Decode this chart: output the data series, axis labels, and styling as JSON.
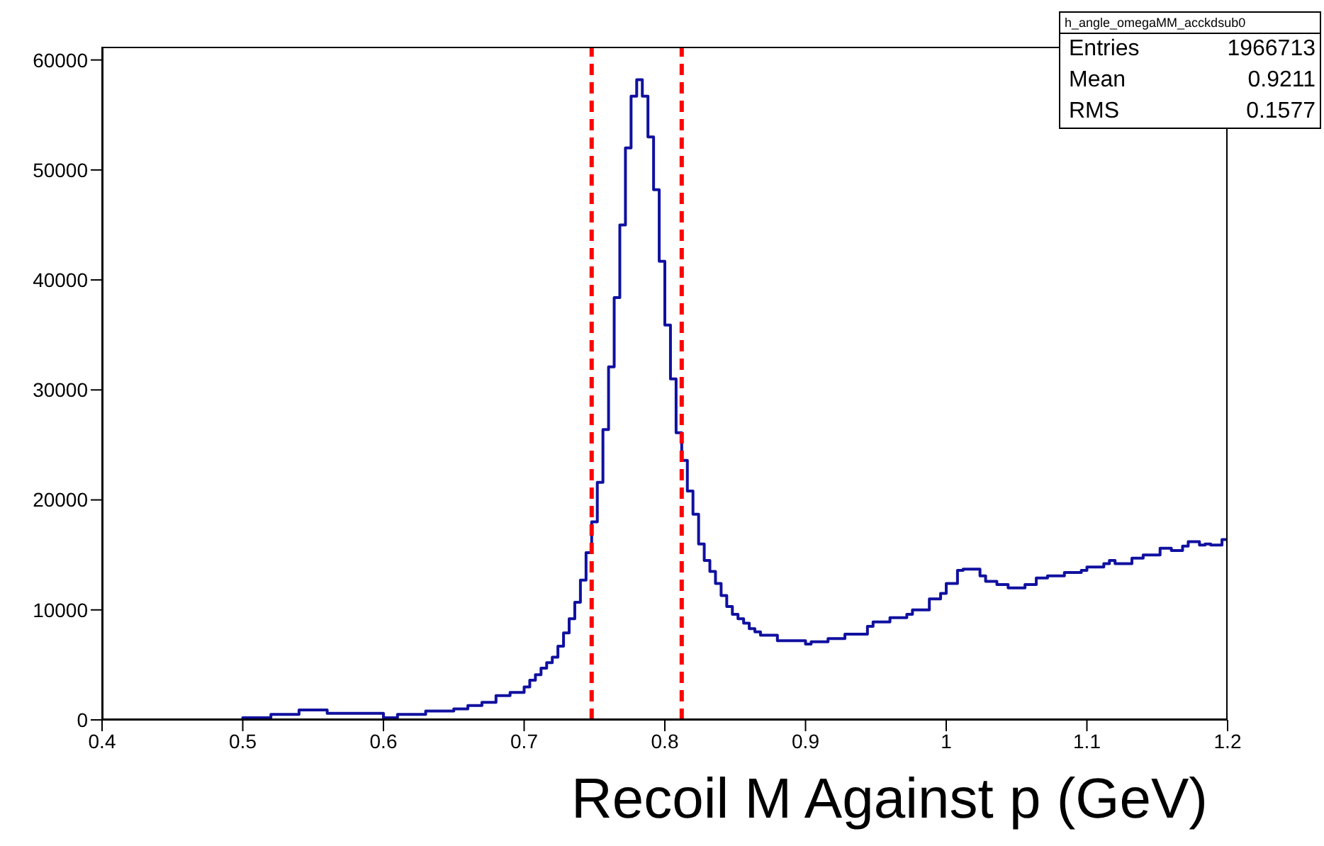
{
  "chart_data": {
    "type": "histogram",
    "xlabel": "Recoil M Against p (GeV)",
    "bins": [
      0.5,
      0.52,
      0.54,
      0.56,
      0.58,
      0.6,
      0.61,
      0.63,
      0.65,
      0.66,
      0.67,
      0.68,
      0.69,
      0.7,
      0.704,
      0.708,
      0.712,
      0.716,
      0.72,
      0.724,
      0.728,
      0.732,
      0.736,
      0.74,
      0.744,
      0.748,
      0.752,
      0.756,
      0.76,
      0.764,
      0.768,
      0.772,
      0.776,
      0.78,
      0.784,
      0.788,
      0.792,
      0.796,
      0.8,
      0.804,
      0.808,
      0.812,
      0.816,
      0.82,
      0.824,
      0.828,
      0.832,
      0.836,
      0.84,
      0.844,
      0.848,
      0.852,
      0.856,
      0.86,
      0.864,
      0.868,
      0.88,
      0.9,
      0.904,
      0.916,
      0.928,
      0.944,
      0.948,
      0.96,
      0.972,
      0.976,
      0.988,
      0.996,
      1.0,
      1.008,
      1.012,
      1.024,
      1.028,
      1.036,
      1.044,
      1.056,
      1.064,
      1.072,
      1.084,
      1.096,
      1.1,
      1.112,
      1.116,
      1.12,
      1.132,
      1.14,
      1.152,
      1.16,
      1.168,
      1.172,
      1.18,
      1.184,
      1.188,
      1.196,
      1.2
    ],
    "values": [
      200,
      500,
      900,
      600,
      600,
      200,
      500,
      800,
      1000,
      1300,
      1600,
      2200,
      2500,
      3000,
      3600,
      4100,
      4700,
      5200,
      5700,
      6700,
      7900,
      9200,
      10700,
      12700,
      15200,
      18000,
      21600,
      26400,
      32100,
      38400,
      45000,
      52000,
      56700,
      58200,
      56700,
      53000,
      48200,
      41700,
      35900,
      31000,
      26100,
      23600,
      20800,
      18700,
      16000,
      14500,
      13500,
      12400,
      11300,
      10300,
      9600,
      9200,
      8800,
      8300,
      8000,
      7700,
      7200,
      6900,
      7100,
      7400,
      7800,
      8500,
      8900,
      9300,
      9600,
      10000,
      11000,
      11500,
      12400,
      13600,
      13700,
      13100,
      12600,
      12300,
      12000,
      12300,
      12900,
      13100,
      13400,
      13600,
      13900,
      14200,
      14500,
      14200,
      14700,
      15000,
      15600,
      15400,
      15800,
      16200,
      15900,
      16000,
      15900,
      16400
    ],
    "color": "#1010a0",
    "xlim": [
      0.4,
      1.2
    ],
    "xticks": [
      0.4,
      0.5,
      0.6,
      0.7,
      0.8,
      0.9,
      1,
      1.1,
      1.2
    ],
    "ylim": [
      0,
      61200
    ],
    "yticks": [
      0,
      10000,
      20000,
      30000,
      40000,
      50000,
      60000
    ],
    "grid": false,
    "legend": false,
    "ref_lines": [
      {
        "axis": "x",
        "value": 0.748,
        "color": "#ff0000",
        "line_style": "dashed"
      },
      {
        "axis": "x",
        "value": 0.812,
        "color": "#ff0000",
        "line_style": "dashed"
      }
    ],
    "annotations": [
      "h_angle_omegaMM_acckdsub0",
      "Entries",
      "1966713",
      "Mean",
      "0.9211",
      "RMS",
      "0.1577"
    ]
  }
}
